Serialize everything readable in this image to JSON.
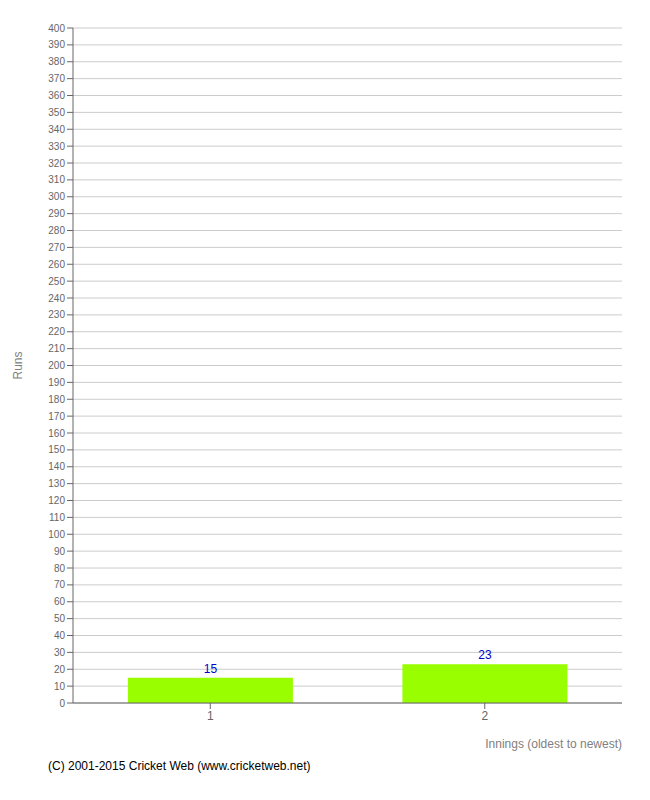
{
  "chart_data": {
    "type": "bar",
    "categories": [
      1,
      2
    ],
    "values": [
      15,
      23
    ],
    "color": "#99ff00",
    "xlabel": "Innings (oldest to newest)",
    "ylabel": "Runs",
    "ylim": [
      0,
      400
    ],
    "yticks": [
      0,
      10,
      20,
      30,
      40,
      50,
      60,
      70,
      80,
      90,
      100,
      110,
      120,
      130,
      140,
      150,
      160,
      170,
      180,
      190,
      200,
      210,
      220,
      230,
      240,
      250,
      260,
      270,
      280,
      290,
      300,
      310,
      320,
      330,
      340,
      350,
      360,
      370,
      380,
      390,
      400
    ],
    "grid": true,
    "data_labels": true,
    "annotations": [
      "(C) 2001-2015 Cricket Web (www.cricketweb.net)"
    ]
  }
}
